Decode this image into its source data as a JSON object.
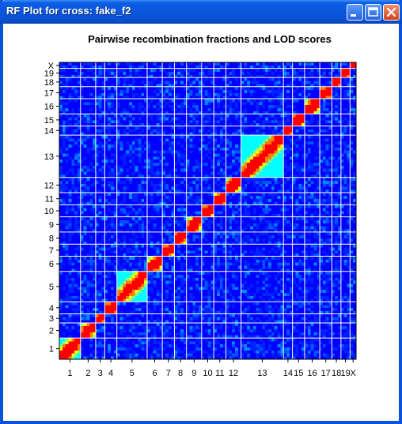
{
  "window": {
    "title": "RF Plot for cross: fake_f2",
    "icons": [
      "minimize-icon",
      "maximize-icon",
      "close-icon"
    ]
  },
  "chart_data": {
    "type": "heatmap",
    "title": "Pairwise recombination fractions and LOD scores",
    "chromosomes": [
      "1",
      "2",
      "3",
      "4",
      "5",
      "6",
      "7",
      "8",
      "9",
      "10",
      "11",
      "12",
      "13",
      "14",
      "15",
      "16",
      "17",
      "18",
      "19",
      "X"
    ],
    "markers_per_chromosome": [
      7,
      5,
      3,
      4,
      10,
      5,
      4,
      4,
      5,
      4,
      4,
      5,
      14,
      3,
      4,
      5,
      4,
      3,
      3,
      2
    ],
    "x_tick_labels": [
      "1",
      "2",
      "3",
      "4",
      "5",
      "6",
      "7",
      "8",
      "9",
      "10",
      "11",
      "12",
      "13",
      "14",
      "15",
      "16",
      "17",
      "18",
      "19",
      "X"
    ],
    "y_tick_labels": [
      "1",
      "2",
      "3",
      "4",
      "5",
      "6",
      "7",
      "8",
      "9",
      "10",
      "11",
      "12",
      "13",
      "14",
      "15",
      "16",
      "17",
      "18",
      "19",
      "X"
    ],
    "color_scale": [
      "#0000ff",
      "#0080ff",
      "#00ffff",
      "#80ff80",
      "#ffff00",
      "#ff8000",
      "#ff0000"
    ],
    "grid": true,
    "description_of_values": "red = strong linkage (within chromosome), blue = unlinked"
  }
}
